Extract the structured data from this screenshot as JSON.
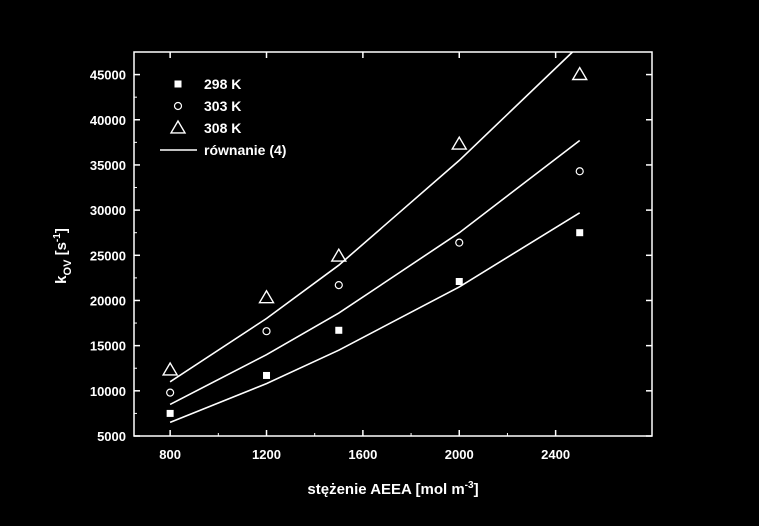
{
  "chart_data": {
    "type": "scatter",
    "title": "",
    "xlabel": "stężenie AEEA [mol m",
    "xlabel_sup": "-3",
    "xlabel_suffix": "]",
    "ylabel_main": "k",
    "ylabel_sub": "OV",
    "ylabel_unit": " [s",
    "ylabel_sup": "-1",
    "ylabel_suffix": "]",
    "xlim": [
      650,
      2800
    ],
    "ylim": [
      5000,
      47500
    ],
    "xticks": [
      800,
      1200,
      1600,
      2000,
      2400
    ],
    "yticks": [
      5000,
      10000,
      15000,
      20000,
      25000,
      30000,
      35000,
      40000,
      45000
    ],
    "grid": false,
    "legend_position": "top-left",
    "background": "#000000",
    "foreground": "#ffffff",
    "series": [
      {
        "name": "298 K",
        "marker": "filled-square",
        "points": [
          [
            800,
            7500
          ],
          [
            1200,
            11700
          ],
          [
            1500,
            16700
          ],
          [
            2000,
            22100
          ],
          [
            2500,
            27500
          ]
        ]
      },
      {
        "name": "303 K",
        "marker": "open-circle",
        "points": [
          [
            800,
            9800
          ],
          [
            1200,
            16600
          ],
          [
            1500,
            21700
          ],
          [
            2000,
            26400
          ],
          [
            2500,
            34300
          ]
        ]
      },
      {
        "name": "308 K",
        "marker": "open-triangle",
        "points": [
          [
            800,
            12300
          ],
          [
            1200,
            20300
          ],
          [
            1500,
            24900
          ],
          [
            2000,
            37300
          ],
          [
            2500,
            45000
          ]
        ]
      }
    ],
    "fit_lines": {
      "name": "równanie (4)",
      "curves": [
        [
          [
            800,
            6500
          ],
          [
            1200,
            10800
          ],
          [
            1500,
            14500
          ],
          [
            2000,
            21500
          ],
          [
            2500,
            29700
          ]
        ],
        [
          [
            800,
            8500
          ],
          [
            1200,
            14000
          ],
          [
            1500,
            18600
          ],
          [
            2000,
            27500
          ],
          [
            2500,
            37700
          ]
        ],
        [
          [
            800,
            11000
          ],
          [
            1200,
            18000
          ],
          [
            1500,
            23900
          ],
          [
            2000,
            35500
          ],
          [
            2470,
            47500
          ]
        ]
      ]
    }
  }
}
